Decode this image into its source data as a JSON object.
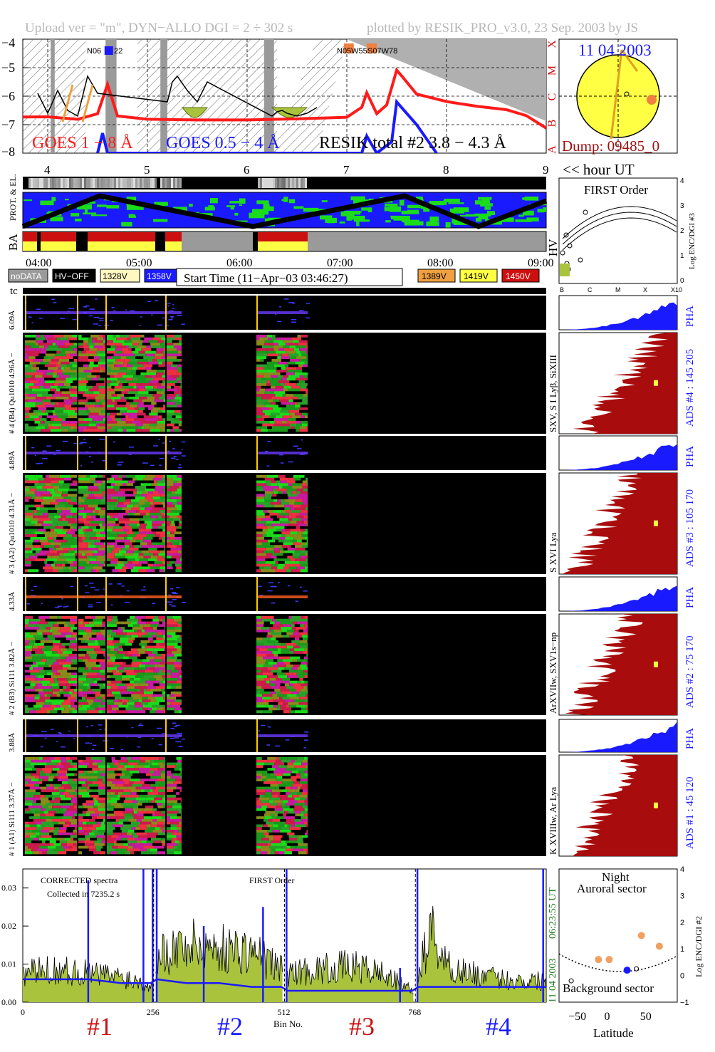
{
  "header": {
    "title_left": "Upload ver = \"m\", DYN−ALLO DGI =   2 ÷ 302 s",
    "title_right": "plotted by RESIK_PRO_v3.0, 23 Sep. 2003 by JS"
  },
  "goes_panel": {
    "yticks": [
      "−4",
      "−5",
      "−6",
      "−7",
      "−8"
    ],
    "class_letters": [
      "X",
      "M",
      "C",
      "B",
      "A"
    ],
    "xticks": [
      "4",
      "5",
      "6",
      "7",
      "8",
      "9"
    ],
    "hour_label": "<< hour UT",
    "ar_labels": [
      "N06",
      "22",
      "N05W55",
      "S07W78"
    ],
    "legend": {
      "goes_long": "GOES 1 − 8 Å",
      "goes_short": "GOES 0.5 − 4 Å",
      "resik": "RESIK total #2  3.8 − 4.3 Å"
    },
    "colors": {
      "goes_long": "#ff1a1a",
      "goes_short": "#1a1aff",
      "resik": "#000000",
      "flare_fill": "#a9c43c",
      "saa": "#9a9a9a"
    }
  },
  "sun_panel": {
    "date": "11 04 2003",
    "dump": "Dump: 09485_0",
    "colors": {
      "disk": "#ffff44",
      "arrow": "#e0a020",
      "spot": "#f08040",
      "date": "#1a1aff",
      "dump": "#a01010"
    }
  },
  "status_panels": {
    "prot_label": "PROT. & EL.",
    "ba_label": "BA",
    "hv_label": "HV",
    "time_ticks": [
      "04:00",
      "05:00",
      "06:00",
      "07:00",
      "08:00",
      "09:00"
    ],
    "legend_left": [
      {
        "label": "noDATA",
        "bg": "#9a9a9a",
        "fg": "#ffffff"
      },
      {
        "label": "HV−OFF",
        "bg": "#000000",
        "fg": "#ffffff"
      },
      {
        "label": "1328V",
        "bg": "#fff8c0",
        "fg": "#000000"
      },
      {
        "label": "1358V",
        "bg": "#1a1aff",
        "fg": "#ffffff"
      }
    ],
    "start_time": "Start Time (11−Apr−03 03:46:27)",
    "legend_right": [
      {
        "label": "1389V",
        "bg": "#f0a040",
        "fg": "#000000"
      },
      {
        "label": "1419V",
        "bg": "#ffff44",
        "fg": "#000000"
      },
      {
        "label": "1450V",
        "bg": "#cc1010",
        "fg": "#ffffff"
      }
    ]
  },
  "first_order_panel": {
    "title": "FIRST Order",
    "yticks": [
      "4",
      "3",
      "2",
      "1",
      "0"
    ],
    "ylabel": "Log ENC/DGI #3",
    "xticks": [
      "B",
      "C",
      "M",
      "X",
      "X10"
    ]
  },
  "tc_label": "tc",
  "channels": [
    {
      "pha_label": "6.09Å",
      "spec_label": "# 4 (B4) Qu1010 4.96Å −",
      "lines_label": "SXV, S I Lyβ, SiXIII",
      "ads_label": "ADS #4 :   145 205",
      "pha_word": "PHA"
    },
    {
      "pha_label": "4.89Å",
      "spec_label": "# 3 (A2) Qu1010  4.31Å −",
      "lines_label": "S XVI Lya",
      "ads_label": "ADS #3 :   105 170",
      "pha_word": "PHA"
    },
    {
      "pha_label": "4.33Å",
      "spec_label": "# 2 (B3) Si111  3.82Å −",
      "lines_label": "ArXVIIw, SXV1s−np",
      "ads_label": "ADS #2 :   75 170",
      "pha_word": "PHA"
    },
    {
      "pha_label": "3.88Å",
      "spec_label": "# 1 (A1) Si111  3.37Å −",
      "lines_label": "K XVIIIw, Ar Lya",
      "ads_label": "ADS #1 :   45 120",
      "pha_word": "PHA"
    }
  ],
  "spectra_panel": {
    "text1": "CORRECTED spectra",
    "text2": "Collected in  7235.2 s",
    "text3": "FIRST Order",
    "date": "11 04 2003",
    "time": "06:23:55 UT",
    "yticks": [
      "0.03",
      "0.02",
      "0.01",
      "0.00"
    ],
    "xticks": [
      "0",
      "256",
      "512",
      "768"
    ],
    "xlabel": "Bin No.",
    "channel_labels": [
      {
        "label": "#1",
        "color": "#cc1010"
      },
      {
        "label": "#2",
        "color": "#1a1aff"
      },
      {
        "label": "#3",
        "color": "#cc1010"
      },
      {
        "label": "#4",
        "color": "#1a1aff"
      }
    ]
  },
  "lat_panel": {
    "title1": "Night",
    "title2": "Auroral sector",
    "title3": "Background sector",
    "yticks": [
      "4",
      "3",
      "2",
      "1",
      "0",
      "−1"
    ],
    "xticks": [
      "−50",
      "0",
      "50"
    ],
    "xlabel": "Latitude",
    "ylabel": "Log ENC/DGI #2"
  },
  "chart_data": [
    {
      "type": "line",
      "title": "",
      "xlabel": "",
      "ylabel": "",
      "x_unit": "hour UT",
      "xlim": [
        3.75,
        9.0
      ],
      "ylim": [
        -8,
        -4
      ],
      "series": [
        {
          "name": "GOES 1 − 8 Å",
          "x": [
            3.75,
            4.0,
            4.3,
            4.5,
            4.6,
            4.7,
            5.0,
            5.5,
            6.0,
            6.5,
            7.0,
            7.15,
            7.2,
            7.3,
            7.4,
            7.5,
            7.55,
            7.7,
            8.0,
            8.3,
            8.6,
            8.8,
            9.0
          ],
          "y": [
            -6.7,
            -6.75,
            -6.8,
            -6.6,
            -5.6,
            -6.7,
            -6.8,
            -6.85,
            -6.85,
            -6.8,
            -6.75,
            -6.4,
            -5.9,
            -6.6,
            -6.3,
            -5.1,
            -5.3,
            -5.9,
            -6.2,
            -6.35,
            -6.5,
            -6.7,
            -7.1
          ]
        },
        {
          "name": "GOES 0.5 − 4 Å",
          "x": [
            4.5,
            4.55,
            4.6,
            7.15,
            7.2,
            7.3,
            7.45,
            7.5,
            7.7,
            7.9
          ],
          "y": [
            -8,
            -7.3,
            -8,
            -8,
            -7.4,
            -8,
            -7.6,
            -6.2,
            -7.0,
            -8
          ]
        },
        {
          "name": "RESIK total #2  3.8 − 4.3 Å",
          "x": [
            3.9,
            4.0,
            4.1,
            4.2,
            4.3,
            4.4,
            4.45,
            4.5,
            5.2,
            5.25,
            5.3,
            5.4,
            5.5,
            5.6,
            6.25,
            6.3,
            6.35,
            6.4,
            6.5,
            6.6,
            6.7
          ],
          "y": [
            -5.9,
            -6.6,
            -5.8,
            -6.5,
            -6.7,
            -5.3,
            -5.6,
            -5.9,
            -6.2,
            -5.5,
            -5.3,
            -5.8,
            -6.2,
            -5.5,
            -6.7,
            -6.55,
            -6.5,
            -6.6,
            -6.7,
            -6.6,
            -6.4
          ]
        }
      ]
    },
    {
      "type": "line",
      "title": "",
      "xlabel": "Bin No.",
      "ylabel": "",
      "xlim": [
        0,
        1024
      ],
      "ylim": [
        0,
        0.035
      ],
      "series": [
        {
          "name": "",
          "x": [
            0,
            64,
            128,
            192,
            250,
            262,
            320,
            384,
            448,
            506,
            518,
            576,
            640,
            704,
            762,
            774,
            800,
            830,
            900,
            960,
            1024
          ],
          "y": [
            0.008,
            0.009,
            0.008,
            0.007,
            0.005,
            0.013,
            0.016,
            0.015,
            0.014,
            0.009,
            0.008,
            0.009,
            0.01,
            0.008,
            0.003,
            0.008,
            0.02,
            0.01,
            0.007,
            0.006,
            0.006
          ]
        },
        {
          "name": "",
          "x": [
            0,
            64,
            128,
            192,
            250,
            262,
            320,
            384,
            448,
            506,
            518,
            576,
            640,
            704,
            762,
            774,
            830,
            900,
            960,
            1024
          ],
          "y": [
            0.006,
            0.006,
            0.006,
            0.005,
            0.005,
            0.006,
            0.005,
            0.005,
            0.004,
            0.004,
            0.003,
            0.003,
            0.003,
            0.003,
            0.003,
            0.004,
            0.004,
            0.004,
            0.004,
            0.004
          ]
        }
      ]
    },
    {
      "type": "scatter",
      "title": "",
      "xlabel": "Latitude",
      "ylabel": "Log ENC/DGI #2",
      "xlim": [
        -75,
        90
      ],
      "ylim": [
        -1,
        4
      ],
      "series": [
        {
          "name": "",
          "x": [
            -20,
            -5,
            40,
            65
          ],
          "y": [
            0.6,
            0.6,
            1.5,
            1.1
          ]
        },
        {
          "name": "",
          "x": [
            20
          ],
          "y": [
            0.2
          ]
        }
      ]
    }
  ]
}
